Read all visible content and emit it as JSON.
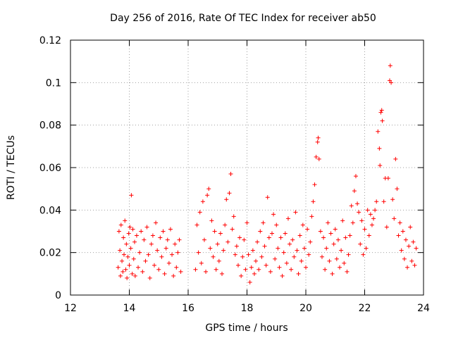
{
  "chart_data": {
    "type": "scatter",
    "title": "Day 256 of 2016, Rate Of TEC Index for receiver ab50",
    "xlabel": "GPS time / hours",
    "ylabel": "ROTI / TECUs",
    "xlim": [
      12,
      24
    ],
    "ylim": [
      0,
      0.12
    ],
    "x_ticks": [
      12,
      14,
      16,
      18,
      20,
      22,
      24
    ],
    "x_tick_labels": [
      "12",
      "14",
      "16",
      "18",
      "20",
      "22",
      "24"
    ],
    "y_ticks": [
      0,
      0.02,
      0.04,
      0.06,
      0.08,
      0.1,
      0.12
    ],
    "y_tick_labels": [
      "0",
      "0.02",
      "0.04",
      "0.06",
      "0.08",
      "0.1",
      "0.12"
    ],
    "grid": true,
    "marker": "+",
    "series": [
      {
        "name": "ROTI",
        "color": "#ff0000",
        "points": [
          [
            13.62,
            0.013
          ],
          [
            13.65,
            0.03
          ],
          [
            13.68,
            0.021
          ],
          [
            13.7,
            0.009
          ],
          [
            13.72,
            0.033
          ],
          [
            13.75,
            0.016
          ],
          [
            13.78,
            0.011
          ],
          [
            13.8,
            0.027
          ],
          [
            13.82,
            0.019
          ],
          [
            13.85,
            0.035
          ],
          [
            13.88,
            0.012
          ],
          [
            13.9,
            0.024
          ],
          [
            13.92,
            0.008
          ],
          [
            13.95,
            0.018
          ],
          [
            13.98,
            0.029
          ],
          [
            14.0,
            0.014
          ],
          [
            14.02,
            0.032
          ],
          [
            14.05,
            0.022
          ],
          [
            14.07,
            0.047
          ],
          [
            14.1,
            0.01
          ],
          [
            14.12,
            0.031
          ],
          [
            14.15,
            0.017
          ],
          [
            14.18,
            0.025
          ],
          [
            14.2,
            0.009
          ],
          [
            14.25,
            0.028
          ],
          [
            14.3,
            0.013
          ],
          [
            14.35,
            0.02
          ],
          [
            14.4,
            0.03
          ],
          [
            14.45,
            0.011
          ],
          [
            14.5,
            0.026
          ],
          [
            14.55,
            0.016
          ],
          [
            14.6,
            0.032
          ],
          [
            14.65,
            0.019
          ],
          [
            14.7,
            0.008
          ],
          [
            14.75,
            0.024
          ],
          [
            14.8,
            0.028
          ],
          [
            14.85,
            0.014
          ],
          [
            14.9,
            0.034
          ],
          [
            14.95,
            0.021
          ],
          [
            15.0,
            0.012
          ],
          [
            15.05,
            0.027
          ],
          [
            15.1,
            0.018
          ],
          [
            15.15,
            0.03
          ],
          [
            15.2,
            0.01
          ],
          [
            15.25,
            0.022
          ],
          [
            15.3,
            0.026
          ],
          [
            15.35,
            0.015
          ],
          [
            15.4,
            0.031
          ],
          [
            15.45,
            0.019
          ],
          [
            15.5,
            0.009
          ],
          [
            15.55,
            0.024
          ],
          [
            15.6,
            0.013
          ],
          [
            15.65,
            0.02
          ],
          [
            15.7,
            0.026
          ],
          [
            15.75,
            0.011
          ],
          [
            16.25,
            0.012
          ],
          [
            16.3,
            0.033
          ],
          [
            16.35,
            0.02
          ],
          [
            16.4,
            0.039
          ],
          [
            16.45,
            0.015
          ],
          [
            16.5,
            0.044
          ],
          [
            16.55,
            0.026
          ],
          [
            16.6,
            0.011
          ],
          [
            16.65,
            0.047
          ],
          [
            16.7,
            0.05
          ],
          [
            16.75,
            0.022
          ],
          [
            16.8,
            0.035
          ],
          [
            16.85,
            0.018
          ],
          [
            16.9,
            0.03
          ],
          [
            16.95,
            0.012
          ],
          [
            17.0,
            0.024
          ],
          [
            17.05,
            0.016
          ],
          [
            17.1,
            0.029
          ],
          [
            17.15,
            0.01
          ],
          [
            17.2,
            0.021
          ],
          [
            17.25,
            0.033
          ],
          [
            17.3,
            0.045
          ],
          [
            17.35,
            0.025
          ],
          [
            17.4,
            0.048
          ],
          [
            17.45,
            0.057
          ],
          [
            17.5,
            0.031
          ],
          [
            17.55,
            0.037
          ],
          [
            17.6,
            0.019
          ],
          [
            17.65,
            0.023
          ],
          [
            17.7,
            0.014
          ],
          [
            17.75,
            0.027
          ],
          [
            17.8,
            0.009
          ],
          [
            17.85,
            0.018
          ],
          [
            17.9,
            0.026
          ],
          [
            17.95,
            0.012
          ],
          [
            18.0,
            0.034
          ],
          [
            18.05,
            0.019
          ],
          [
            18.1,
            0.006
          ],
          [
            18.15,
            0.013
          ],
          [
            18.2,
            0.021
          ],
          [
            18.25,
            0.01
          ],
          [
            18.3,
            0.016
          ],
          [
            18.35,
            0.025
          ],
          [
            18.4,
            0.012
          ],
          [
            18.45,
            0.03
          ],
          [
            18.5,
            0.018
          ],
          [
            18.55,
            0.034
          ],
          [
            18.6,
            0.023
          ],
          [
            18.65,
            0.014
          ],
          [
            18.7,
            0.046
          ],
          [
            18.75,
            0.027
          ],
          [
            18.8,
            0.011
          ],
          [
            18.85,
            0.029
          ],
          [
            18.9,
            0.038
          ],
          [
            18.95,
            0.017
          ],
          [
            19.0,
            0.033
          ],
          [
            19.05,
            0.022
          ],
          [
            19.1,
            0.013
          ],
          [
            19.15,
            0.027
          ],
          [
            19.2,
            0.009
          ],
          [
            19.25,
            0.02
          ],
          [
            19.3,
            0.029
          ],
          [
            19.35,
            0.015
          ],
          [
            19.4,
            0.036
          ],
          [
            19.45,
            0.024
          ],
          [
            19.5,
            0.012
          ],
          [
            19.55,
            0.026
          ],
          [
            19.6,
            0.018
          ],
          [
            19.65,
            0.039
          ],
          [
            19.7,
            0.021
          ],
          [
            19.75,
            0.01
          ],
          [
            19.8,
            0.028
          ],
          [
            19.85,
            0.016
          ],
          [
            19.9,
            0.033
          ],
          [
            19.95,
            0.022
          ],
          [
            20.0,
            0.013
          ],
          [
            20.05,
            0.031
          ],
          [
            20.1,
            0.019
          ],
          [
            20.15,
            0.025
          ],
          [
            20.2,
            0.037
          ],
          [
            20.25,
            0.044
          ],
          [
            20.3,
            0.052
          ],
          [
            20.35,
            0.065
          ],
          [
            20.4,
            0.072
          ],
          [
            20.42,
            0.074
          ],
          [
            20.45,
            0.064
          ],
          [
            20.5,
            0.03
          ],
          [
            20.55,
            0.018
          ],
          [
            20.6,
            0.027
          ],
          [
            20.65,
            0.012
          ],
          [
            20.7,
            0.022
          ],
          [
            20.75,
            0.034
          ],
          [
            20.8,
            0.016
          ],
          [
            20.85,
            0.029
          ],
          [
            20.9,
            0.01
          ],
          [
            20.95,
            0.024
          ],
          [
            21.0,
            0.031
          ],
          [
            21.05,
            0.017
          ],
          [
            21.1,
            0.026
          ],
          [
            21.15,
            0.013
          ],
          [
            21.2,
            0.021
          ],
          [
            21.25,
            0.035
          ],
          [
            21.3,
            0.015
          ],
          [
            21.35,
            0.027
          ],
          [
            21.4,
            0.011
          ],
          [
            21.45,
            0.019
          ],
          [
            21.5,
            0.028
          ],
          [
            21.55,
            0.042
          ],
          [
            21.6,
            0.034
          ],
          [
            21.65,
            0.049
          ],
          [
            21.7,
            0.056
          ],
          [
            21.75,
            0.043
          ],
          [
            21.8,
            0.039
          ],
          [
            21.85,
            0.024
          ],
          [
            21.9,
            0.035
          ],
          [
            21.95,
            0.019
          ],
          [
            22.0,
            0.031
          ],
          [
            22.05,
            0.022
          ],
          [
            22.1,
            0.04
          ],
          [
            22.15,
            0.028
          ],
          [
            22.2,
            0.038
          ],
          [
            22.25,
            0.033
          ],
          [
            22.3,
            0.036
          ],
          [
            22.35,
            0.04
          ],
          [
            22.4,
            0.044
          ],
          [
            22.45,
            0.077
          ],
          [
            22.5,
            0.069
          ],
          [
            22.52,
            0.061
          ],
          [
            22.55,
            0.086
          ],
          [
            22.58,
            0.087
          ],
          [
            22.6,
            0.082
          ],
          [
            22.65,
            0.044
          ],
          [
            22.7,
            0.055
          ],
          [
            22.75,
            0.032
          ],
          [
            22.8,
            0.055
          ],
          [
            22.85,
            0.101
          ],
          [
            22.87,
            0.108
          ],
          [
            22.9,
            0.1
          ],
          [
            22.95,
            0.045
          ],
          [
            23.0,
            0.036
          ],
          [
            23.05,
            0.064
          ],
          [
            23.1,
            0.05
          ],
          [
            23.15,
            0.028
          ],
          [
            23.2,
            0.034
          ],
          [
            23.25,
            0.021
          ],
          [
            23.3,
            0.03
          ],
          [
            23.35,
            0.017
          ],
          [
            23.4,
            0.026
          ],
          [
            23.45,
            0.013
          ],
          [
            23.5,
            0.023
          ],
          [
            23.55,
            0.032
          ],
          [
            23.6,
            0.016
          ],
          [
            23.65,
            0.025
          ],
          [
            23.7,
            0.014
          ],
          [
            23.75,
            0.022
          ]
        ]
      }
    ]
  }
}
